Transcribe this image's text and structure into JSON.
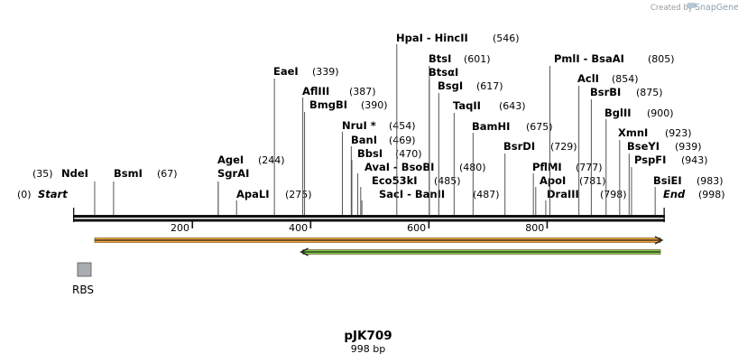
{
  "credit": {
    "prefix": "Created by",
    "brand": "SnapGene"
  },
  "plasmid": {
    "name": "pJK709",
    "size_label": "998 bp",
    "length": 998
  },
  "terminals": {
    "start": {
      "label": "Start",
      "pos": 0,
      "pos_label": "(0)"
    },
    "end": {
      "label": "End",
      "pos": 998,
      "pos_label": "(998)"
    }
  },
  "ruler": {
    "ticks": [
      {
        "value": 200,
        "label": "200"
      },
      {
        "value": 400,
        "label": "400"
      },
      {
        "value": 600,
        "label": "600"
      },
      {
        "value": 800,
        "label": "800"
      }
    ]
  },
  "sites": [
    {
      "name": "NdeI",
      "pos": 35,
      "pos_label": "(35)"
    },
    {
      "name": "BsmI",
      "pos": 67,
      "pos_label": "(67)"
    },
    {
      "name": "AgeI",
      "pos": 244,
      "pos_label": "(244)"
    },
    {
      "name": "SgrAI",
      "pos": 244,
      "pos_label": ""
    },
    {
      "name": "ApaLI",
      "pos": 275,
      "pos_label": "(275)"
    },
    {
      "name": "EaeI",
      "pos": 339,
      "pos_label": "(339)"
    },
    {
      "name": "AflIII",
      "pos": 387,
      "pos_label": "(387)"
    },
    {
      "name": "BmgBI",
      "pos": 390,
      "pos_label": "(390)"
    },
    {
      "name": "NruI *",
      "pos": 454,
      "pos_label": "(454)"
    },
    {
      "name": "BanI",
      "pos": 469,
      "pos_label": "(469)"
    },
    {
      "name": "BbsI",
      "pos": 470,
      "pos_label": "(470)"
    },
    {
      "name": "AvaI  -  BsoBI",
      "pos": 480,
      "pos_label": "(480)"
    },
    {
      "name": "Eco53kI",
      "pos": 485,
      "pos_label": "(485)"
    },
    {
      "name": "SacI  -  BanII",
      "pos": 487,
      "pos_label": "(487)"
    },
    {
      "name": "HpaI  -  HincII",
      "pos": 546,
      "pos_label": "(546)"
    },
    {
      "name": "BtsI",
      "pos": 601,
      "pos_label": "(601)"
    },
    {
      "name": "BtsαI",
      "pos": 601,
      "pos_label": ""
    },
    {
      "name": "BsgI",
      "pos": 617,
      "pos_label": "(617)"
    },
    {
      "name": "TaqII",
      "pos": 643,
      "pos_label": "(643)"
    },
    {
      "name": "BamHI",
      "pos": 675,
      "pos_label": "(675)"
    },
    {
      "name": "BsrDI",
      "pos": 729,
      "pos_label": "(729)"
    },
    {
      "name": "PflMI",
      "pos": 777,
      "pos_label": "(777)"
    },
    {
      "name": "ApoI",
      "pos": 781,
      "pos_label": "(781)"
    },
    {
      "name": "DraIII",
      "pos": 798,
      "pos_label": "(798)"
    },
    {
      "name": "PmlI  -  BsaAI",
      "pos": 805,
      "pos_label": "(805)"
    },
    {
      "name": "AclI",
      "pos": 854,
      "pos_label": "(854)"
    },
    {
      "name": "BsrBI",
      "pos": 875,
      "pos_label": "(875)"
    },
    {
      "name": "BglII",
      "pos": 900,
      "pos_label": "(900)"
    },
    {
      "name": "XmnI",
      "pos": 923,
      "pos_label": "(923)"
    },
    {
      "name": "BseYI",
      "pos": 939,
      "pos_label": "(939)"
    },
    {
      "name": "PspFI",
      "pos": 943,
      "pos_label": "(943)"
    },
    {
      "name": "BsiEI",
      "pos": 983,
      "pos_label": "(983)"
    }
  ],
  "features": {
    "orange_arrow": {
      "start": 35,
      "end": 998,
      "color": "#f2a53a"
    },
    "green_arrow": {
      "start": 387,
      "end": 998,
      "color": "#7fd04a"
    },
    "rbs": {
      "label": "RBS",
      "pos": 18,
      "color": "#a9acb0"
    }
  }
}
